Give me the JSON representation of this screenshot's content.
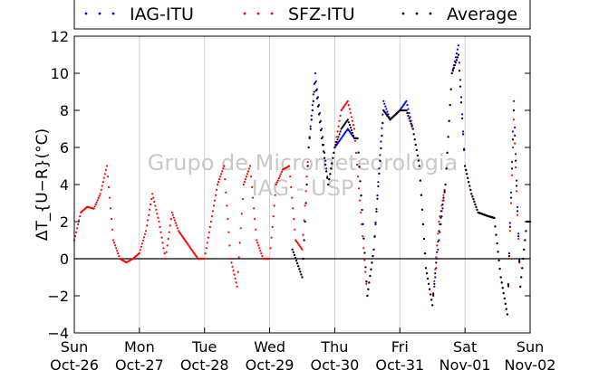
{
  "chart_data": {
    "type": "scatter",
    "title": "",
    "xlabel": "",
    "ylabel": "ΔT_{U−R}(°C)",
    "ylim": [
      -4,
      12
    ],
    "xlim": [
      0,
      7
    ],
    "y_ticks": [
      -4,
      -2,
      0,
      2,
      4,
      6,
      8,
      10,
      12
    ],
    "x_ticks": [
      {
        "x": 0,
        "day": "Sun",
        "date": "Oct-26"
      },
      {
        "x": 1,
        "day": "Mon",
        "date": "Oct-27"
      },
      {
        "x": 2,
        "day": "Tue",
        "date": "Oct-28"
      },
      {
        "x": 3,
        "day": "Wed",
        "date": "Oct-29"
      },
      {
        "x": 4,
        "day": "Thu",
        "date": "Oct-30"
      },
      {
        "x": 5,
        "day": "Fri",
        "date": "Oct-31"
      },
      {
        "x": 6,
        "day": "Sat",
        "date": "Nov-01"
      },
      {
        "x": 7,
        "day": "Sun",
        "date": "Nov-02"
      }
    ],
    "grid": "vertical",
    "legend_placement": "top",
    "watermark": [
      "Grupo de Micrometeorologia",
      "IAG - USP"
    ],
    "series": [
      {
        "name": "IAG-ITU",
        "color": "#0000ff",
        "x": [
          3.35,
          3.5,
          3.6,
          3.7,
          3.8,
          3.9,
          4.0,
          4.1,
          4.2,
          4.3,
          4.35,
          4.5,
          4.6,
          4.75,
          4.85,
          5.0,
          5.1,
          5.2,
          5.3,
          5.4,
          5.5,
          5.6,
          5.7,
          5.8,
          5.9,
          6.0,
          6.1,
          6.2,
          6.35,
          6.45,
          6.55,
          6.65,
          6.75,
          6.85,
          6.95,
          7.0
        ],
        "y": [
          0.5,
          -1.0,
          6.0,
          10.0,
          7.0,
          4.0,
          6.0,
          6.5,
          7.0,
          6.5,
          6.5,
          -2.0,
          0.5,
          8.5,
          7.5,
          8.0,
          8.5,
          7.0,
          5.0,
          -0.5,
          -2.5,
          1.0,
          4.0,
          10.0,
          11.5,
          5.0,
          3.5,
          2.5,
          2.3,
          2.2,
          -1.0,
          -3.0,
          8.5,
          -1.5,
          2.0,
          2.0
        ]
      },
      {
        "name": "SFZ-ITU",
        "color": "#ff0000",
        "x": [
          0.0,
          0.1,
          0.2,
          0.3,
          0.4,
          0.5,
          0.6,
          0.7,
          0.8,
          0.9,
          1.0,
          1.1,
          1.2,
          1.3,
          1.4,
          1.5,
          1.6,
          1.7,
          1.8,
          1.9,
          2.0,
          2.1,
          2.2,
          2.3,
          2.4,
          2.5,
          2.6,
          2.7,
          2.8,
          2.9,
          3.0,
          3.1,
          3.2,
          3.3,
          3.4,
          3.5,
          3.6,
          3.7,
          3.8,
          3.9,
          4.0,
          4.1,
          4.2,
          4.3,
          4.5,
          4.6,
          4.75,
          4.85,
          5.0,
          5.1,
          5.2,
          5.3,
          5.4,
          5.5,
          5.6,
          5.7,
          5.8,
          5.9,
          6.0,
          6.1,
          6.2,
          6.35,
          6.45,
          6.55,
          6.65,
          6.75,
          6.85,
          6.95,
          7.0
        ],
        "y": [
          1.0,
          2.5,
          2.8,
          2.7,
          3.5,
          5.0,
          1.0,
          0.0,
          -0.2,
          0.0,
          0.3,
          1.5,
          3.5,
          2.0,
          0.0,
          2.5,
          1.5,
          1.0,
          0.5,
          0.0,
          0.0,
          2.0,
          4.0,
          5.0,
          0.0,
          -1.5,
          4.0,
          5.0,
          1.0,
          0.0,
          0.0,
          4.0,
          4.8,
          5.0,
          1.0,
          0.5,
          6.0,
          9.5,
          6.5,
          4.0,
          6.0,
          8.0,
          8.5,
          7.0,
          -2.0,
          0.5,
          8.0,
          7.5,
          8.0,
          8.0,
          7.0,
          5.0,
          -0.5,
          -2.5,
          2.0,
          4.0,
          10.0,
          11.0,
          5.0,
          3.5,
          2.5,
          2.3,
          2.2,
          -1.0,
          -3.0,
          7.5,
          -1.5,
          2.0,
          2.0
        ]
      },
      {
        "name": "Average",
        "color": "#000000",
        "x": [
          3.35,
          3.5,
          3.6,
          3.7,
          3.8,
          3.9,
          4.0,
          4.1,
          4.2,
          4.3,
          4.35,
          4.5,
          4.6,
          4.75,
          4.85,
          5.0,
          5.1,
          5.2,
          5.3,
          5.4,
          5.5,
          5.6,
          5.7,
          5.8,
          5.9,
          6.0,
          6.1,
          6.2,
          6.35,
          6.45,
          6.55,
          6.65,
          6.75,
          6.85,
          6.95,
          7.0
        ],
        "y": [
          0.5,
          -1.0,
          6.0,
          9.5,
          6.5,
          4.0,
          6.0,
          7.0,
          7.5,
          6.5,
          6.5,
          -2.0,
          0.5,
          8.0,
          7.5,
          8.0,
          8.0,
          7.0,
          5.0,
          -0.5,
          -2.5,
          1.5,
          4.0,
          10.0,
          11.0,
          5.0,
          3.5,
          2.5,
          2.3,
          2.2,
          -1.0,
          -3.0,
          8.0,
          -1.5,
          2.0,
          2.0
        ]
      }
    ]
  }
}
